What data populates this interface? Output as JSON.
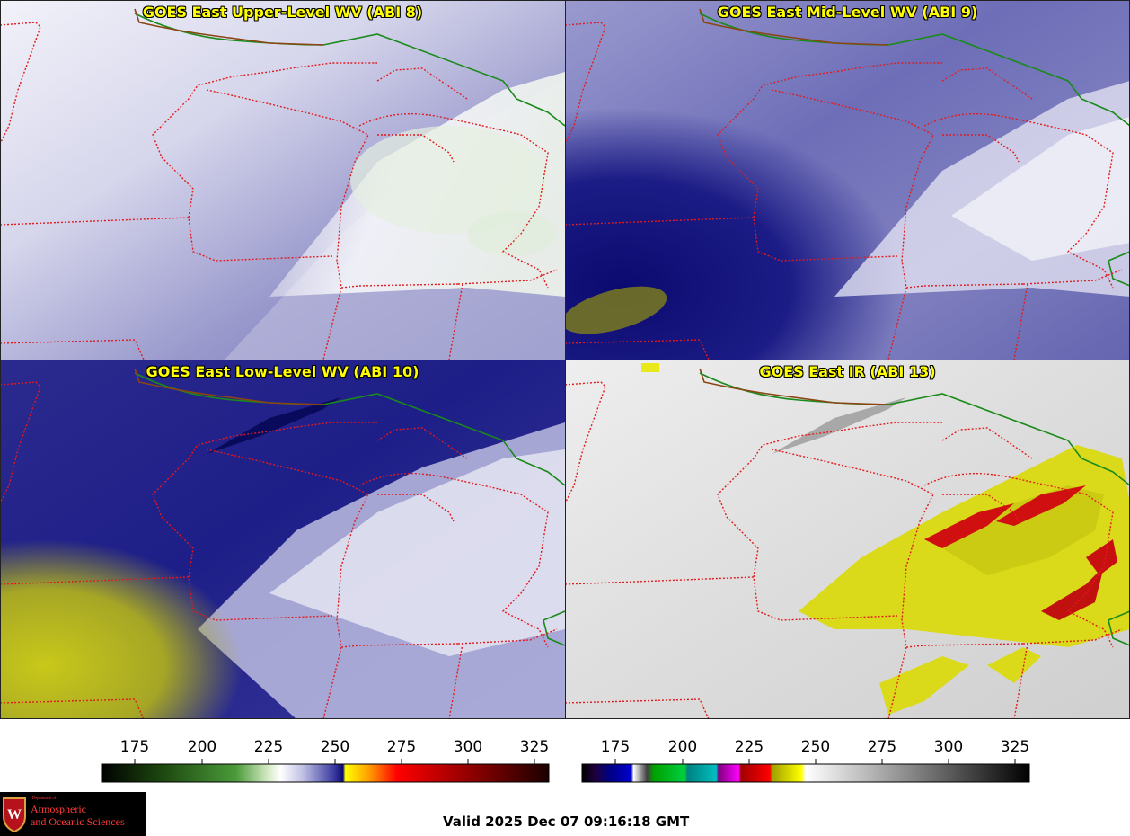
{
  "panels": [
    {
      "title": "GOES East Upper-Level WV (ABI 8)",
      "product": "upper-wv"
    },
    {
      "title": "GOES East Mid-Level WV (ABI 9)",
      "product": "mid-wv"
    },
    {
      "title": "GOES East Low-Level WV (ABI 10)",
      "product": "low-wv"
    },
    {
      "title": "GOES East IR (ABI 13)",
      "product": "ir"
    }
  ],
  "colorbars": [
    {
      "name": "water-vapor",
      "ticks": [
        "175",
        "200",
        "225",
        "250",
        "275",
        "300",
        "325"
      ]
    },
    {
      "name": "infrared",
      "ticks": [
        "175",
        "200",
        "225",
        "250",
        "275",
        "300",
        "325"
      ]
    }
  ],
  "logo": {
    "department": "Department of",
    "line1": "Atmospheric",
    "line2": "and Oceanic Sciences"
  },
  "valid_time": "Valid 2025 Dec 07 09:16:18 GMT",
  "colors": {
    "title_text": "#ffff00",
    "state_borders": "#e31a1c",
    "country_border": "#1a8a1a",
    "coast_border": "#8b4513"
  }
}
